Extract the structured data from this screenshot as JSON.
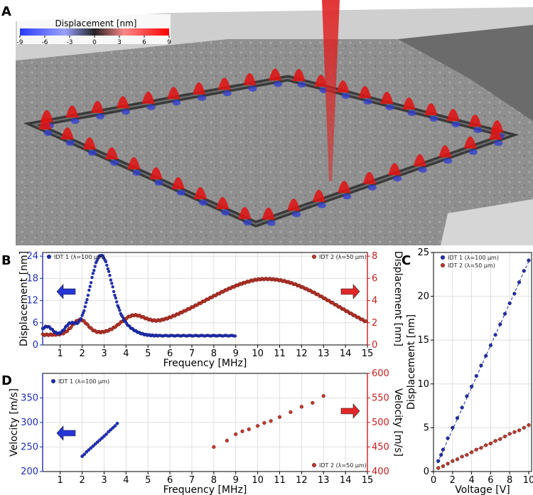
{
  "panels": {
    "a": "A",
    "b": "B",
    "c": "C",
    "d": "D"
  },
  "colors": {
    "blue": "#1f2fb4",
    "red": "#c41e1e",
    "red_fill": "#c0392b"
  },
  "panel_a": {
    "colorbar_title": "Displacement [nm]",
    "colorbar_ticks": [
      "-9",
      "-6",
      "-3",
      "0",
      "3",
      "6",
      "9"
    ]
  },
  "chart_data": [
    {
      "id": "B",
      "type": "scatter",
      "xlabel": "Frequency [MHz]",
      "ylabel_left": "Displacement [nm]",
      "ylabel_right": "Displacement [nm]",
      "xlim": [
        0.2,
        15
      ],
      "ylim_left": [
        0,
        25
      ],
      "ylim_right": [
        0,
        8.33
      ],
      "xticks": [
        1,
        2,
        3,
        4,
        5,
        6,
        7,
        8,
        9,
        10,
        11,
        12,
        13,
        14,
        15
      ],
      "yticks_left": [
        0,
        6,
        12,
        18,
        24
      ],
      "yticks_right": [
        0,
        2,
        4,
        6,
        8
      ],
      "series": [
        {
          "name": "IDT 1 (λ=100 µm)",
          "axis": "left",
          "color": "blue",
          "x_range": [
            0.2,
            9.0
          ],
          "peaks": [
            [
              2.85,
              21.5,
              0.5
            ],
            [
              1.45,
              3.0,
              0.25
            ],
            [
              0.4,
              2.5,
              0.25
            ],
            [
              3.9,
              2.0,
              0.5
            ]
          ],
          "baseline": 2.5
        },
        {
          "name": "IDT 2 (λ=50 µm)",
          "axis": "right",
          "color": "red",
          "x_range": [
            0.2,
            15.0
          ],
          "peaks": [
            [
              1.9,
              1.3,
              0.35
            ],
            [
              4.3,
              1.2,
              0.55
            ],
            [
              10.6,
              5.1,
              3.0
            ]
          ],
          "baseline": 0.9
        }
      ]
    },
    {
      "id": "C",
      "type": "scatter",
      "xlabel": "Voltage [V]",
      "ylabel": "Displacement [nm]",
      "xlim": [
        0,
        10.3
      ],
      "ylim": [
        0,
        25
      ],
      "xticks": [
        0,
        2,
        4,
        6,
        8,
        10
      ],
      "yticks": [
        0,
        5,
        10,
        15,
        20,
        25
      ],
      "series": [
        {
          "name": "IDT 1 (λ=100 µm)",
          "color": "blue",
          "slope": 2.4,
          "intercept": 0,
          "x": [
            0.5,
            0.8,
            1.0,
            1.5,
            2.0,
            2.5,
            3.0,
            3.5,
            4.0,
            4.5,
            5.0,
            5.5,
            6.0,
            6.5,
            7.0,
            7.5,
            8.0,
            8.5,
            9.0,
            9.5,
            10.0
          ],
          "y": [
            1.2,
            1.9,
            2.5,
            3.8,
            5.0,
            6.1,
            7.3,
            8.6,
            9.7,
            10.9,
            12.1,
            13.2,
            14.4,
            15.6,
            16.8,
            18.0,
            19.2,
            20.3,
            21.6,
            22.9,
            24.1
          ]
        },
        {
          "name": "IDT 2 (λ=50 µm)",
          "color": "red",
          "slope": 0.5,
          "intercept": 0.25,
          "x": [
            0.5,
            1.0,
            1.5,
            2.0,
            2.5,
            3.0,
            3.5,
            4.0,
            4.5,
            5.0,
            5.5,
            6.0,
            6.5,
            7.0,
            7.5,
            8.0,
            8.5,
            9.0,
            9.5,
            10.0
          ],
          "y": [
            0.4,
            0.6,
            0.9,
            1.2,
            1.4,
            1.7,
            1.9,
            2.2,
            2.5,
            2.7,
            3.0,
            3.2,
            3.5,
            3.7,
            4.0,
            4.3,
            4.5,
            4.7,
            5.0,
            5.3
          ]
        }
      ]
    },
    {
      "id": "D",
      "type": "scatter",
      "xlabel": "Frequency [MHz]",
      "ylabel_left": "Velocity [m/s]",
      "ylabel_right": "Velocity [m/s]",
      "xlim": [
        0.2,
        15
      ],
      "ylim_left": [
        200,
        400
      ],
      "ylim_right": [
        400,
        600
      ],
      "xticks": [
        1,
        2,
        3,
        4,
        5,
        6,
        7,
        8,
        9,
        10,
        11,
        12,
        13,
        14,
        15
      ],
      "yticks_left": [
        200,
        250,
        300,
        350
      ],
      "yticks_right": [
        400,
        450,
        500,
        550,
        600
      ],
      "series": [
        {
          "name": "IDT 1 (λ=100 µm)",
          "axis": "left",
          "color": "blue",
          "x": [
            2.0,
            2.1,
            2.2,
            2.3,
            2.4,
            2.5,
            2.6,
            2.7,
            2.8,
            2.9,
            3.0,
            3.1,
            3.2,
            3.3,
            3.4,
            3.5,
            3.6
          ],
          "y": [
            231,
            235,
            240,
            244,
            248,
            252,
            256,
            260,
            264,
            268,
            272,
            276,
            281,
            285,
            289,
            293,
            298
          ]
        },
        {
          "name": "IDT 2 (λ=50 µm)",
          "axis": "right",
          "color": "red",
          "x": [
            8.0,
            8.6,
            9.0,
            9.3,
            9.6,
            10.0,
            10.3,
            10.6,
            11.0,
            11.5,
            12.0,
            12.5,
            13.0
          ],
          "y": [
            450,
            463,
            476,
            482,
            486,
            493,
            499,
            503,
            511,
            521,
            532,
            540,
            554
          ]
        }
      ]
    }
  ]
}
